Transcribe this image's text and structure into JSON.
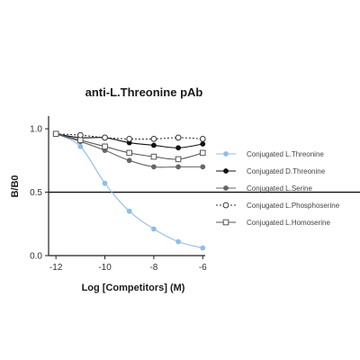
{
  "chart_data": {
    "type": "line",
    "title": "anti-L.Threonine pAb",
    "xlabel": "Log [Competitors] (M)",
    "ylabel": "B/B0",
    "xlim": [
      -12.3,
      -5.9
    ],
    "ylim": [
      0.0,
      1.1
    ],
    "xticks": [
      -12,
      -10,
      -8,
      -6
    ],
    "yticks": [
      0.0,
      0.5,
      1.0
    ],
    "reference_line_y": 0.5,
    "x": [
      -12,
      -11,
      -10,
      -9,
      -8,
      -7,
      -6
    ],
    "legend_position": "right",
    "series": [
      {
        "name": "Conjugated L.Threonine",
        "color": "#8fbde8",
        "marker": "filled-circle",
        "line_style": "solid",
        "values": [
          0.96,
          0.86,
          0.57,
          0.35,
          0.21,
          0.11,
          0.06
        ]
      },
      {
        "name": "Conjugated D.Threonine",
        "color": "#111111",
        "marker": "filled-circle",
        "line_style": "solid",
        "values": [
          0.96,
          0.93,
          0.93,
          0.89,
          0.87,
          0.85,
          0.88
        ]
      },
      {
        "name": "Conjugated L.Serine",
        "color": "#666666",
        "marker": "filled-circle",
        "line_style": "solid",
        "values": [
          0.96,
          0.9,
          0.83,
          0.75,
          0.7,
          0.7,
          0.7
        ]
      },
      {
        "name": "Conjugated L.Phosphoserine",
        "color": "#333333",
        "marker": "open-circle",
        "line_style": "dotted",
        "values": [
          0.96,
          0.95,
          0.93,
          0.92,
          0.92,
          0.93,
          0.92
        ]
      },
      {
        "name": "Conjugated L.Homoserine",
        "color": "#555555",
        "marker": "open-square",
        "line_style": "solid",
        "values": [
          0.96,
          0.91,
          0.86,
          0.81,
          0.78,
          0.76,
          0.81
        ]
      }
    ]
  }
}
